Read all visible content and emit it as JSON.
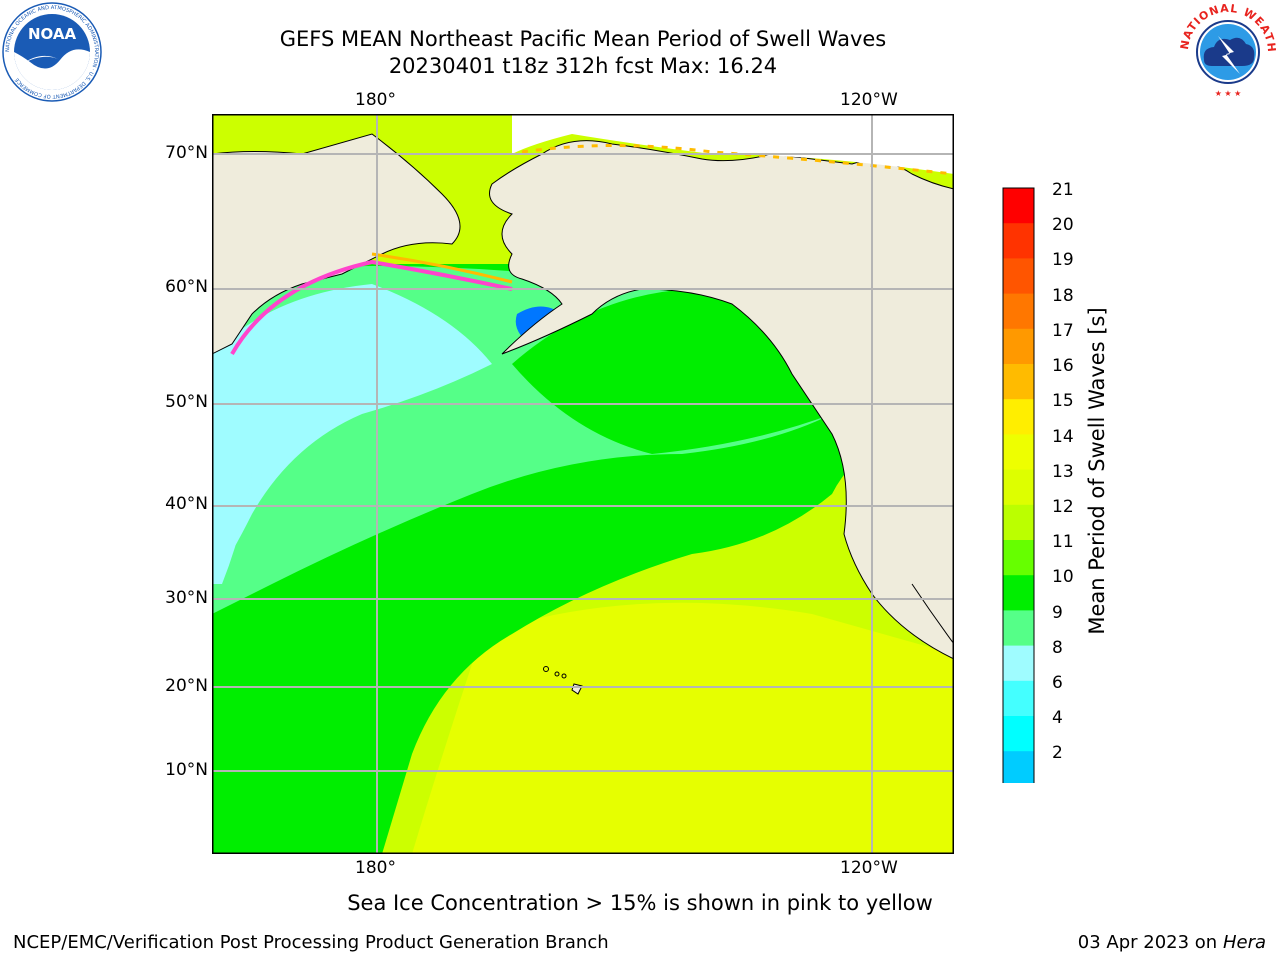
{
  "header": {
    "title_line1": "GEFS MEAN Northeast Pacific Mean Period of Swell Waves",
    "title_line2": "20230401 t18z 312h fcst   Max: 16.24"
  },
  "logos": {
    "left": {
      "text": "NOAA",
      "ring_text": "NATIONAL OCEANIC AND ATMOSPHERIC ADMINISTRATION · U.S. DEPARTMENT OF COMMERCE",
      "color": "#1a5bb5"
    },
    "right": {
      "ring_text": "NATIONAL WEATHER SERVICE",
      "color": "#e8231e"
    }
  },
  "map": {
    "lon_labels_top": [
      "180°",
      "120°W"
    ],
    "lon_labels_bottom": [
      "180°",
      "120°W"
    ],
    "lat_labels": [
      "70°N",
      "60°N",
      "50°N",
      "40°N",
      "30°N",
      "20°N",
      "10°N"
    ],
    "land_color": "#efecdc",
    "ocean_colors": {
      "cyan": "#9ffcff",
      "light_green": "#55ff88",
      "green": "#00ee00",
      "yellow_green": "#ccff00",
      "yellow": "#eeff00"
    }
  },
  "colorbar": {
    "label": "Mean Period of Swell Waves [s]",
    "ticks": [
      "21",
      "20",
      "19",
      "18",
      "17",
      "16",
      "15",
      "14",
      "13",
      "12",
      "11",
      "10",
      "9",
      "8",
      "6",
      "4",
      "2"
    ],
    "colors": [
      "#ff0000",
      "#ff3300",
      "#ff5500",
      "#ff7700",
      "#ff9900",
      "#ffbb00",
      "#ffee00",
      "#eeff00",
      "#ddff00",
      "#bbff00",
      "#66ff00",
      "#00ee00",
      "#55ff88",
      "#9ffcff",
      "#44ffff",
      "#00ffff",
      "#00ccff",
      "#0077ff"
    ],
    "extend_color": "#0000ff"
  },
  "notes": {
    "ice": "Sea Ice Concentration > 15% is shown in pink to yellow"
  },
  "footer": {
    "left": "NCEP/EMC/Verification Post Processing Product Generation Branch",
    "date": "03 Apr 2023 on ",
    "machine": "Hera"
  }
}
